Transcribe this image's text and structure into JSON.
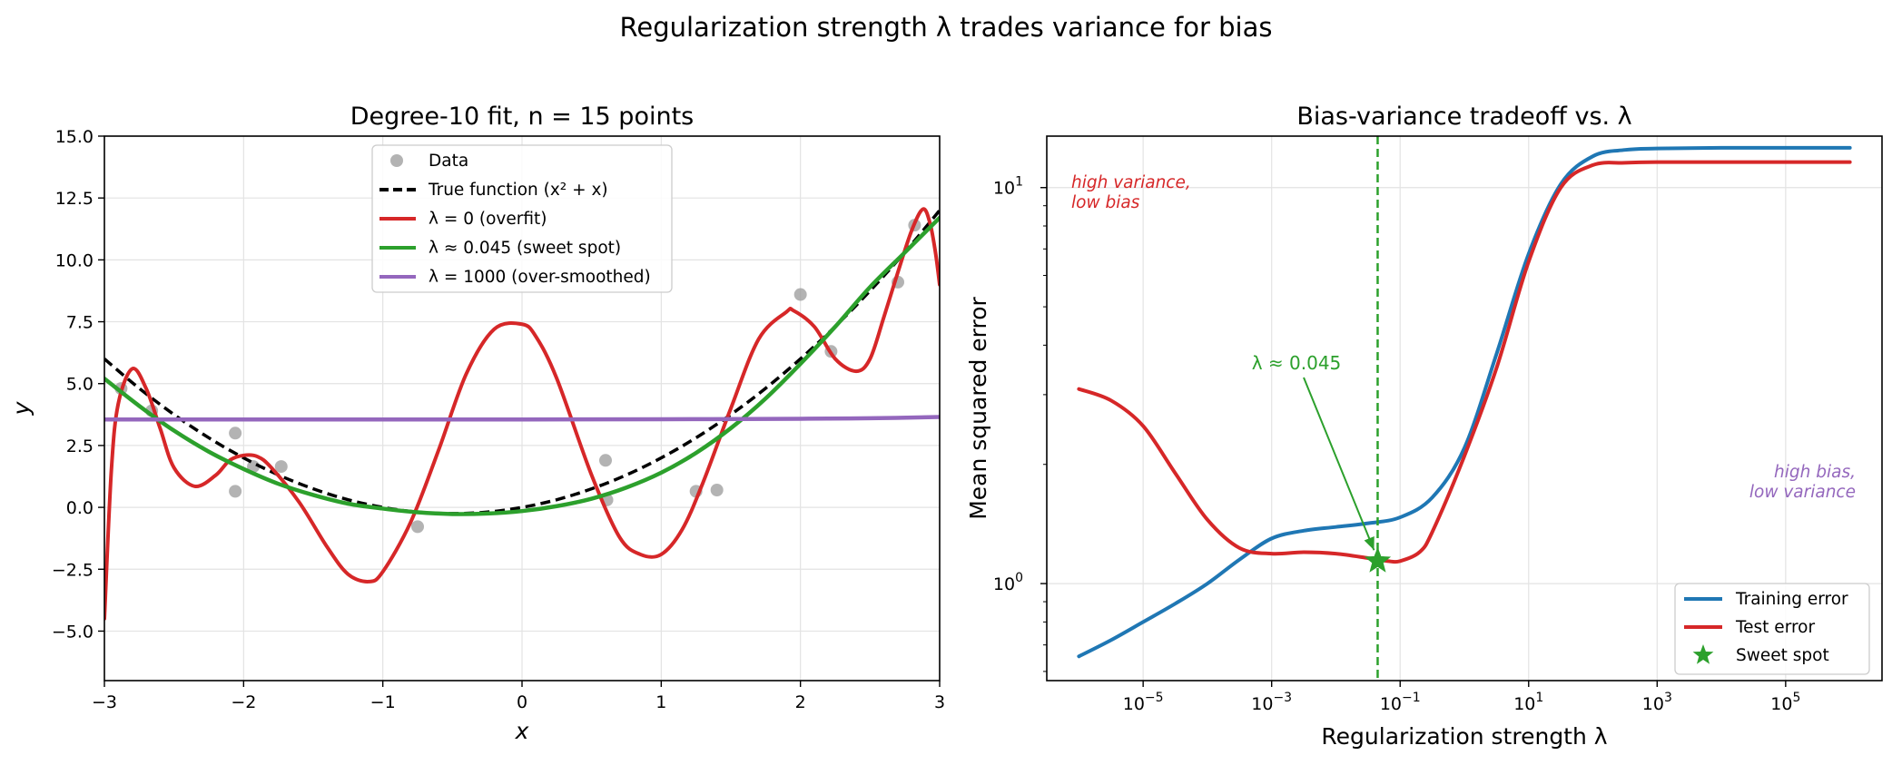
{
  "figure": {
    "title": "Regularization strength λ trades variance for bias"
  },
  "chart_data": [
    {
      "type": "line",
      "title": "Degree-10 fit, n = 15 points",
      "xlabel": "x",
      "ylabel": "y",
      "xlim": [
        -3,
        3
      ],
      "ylim": [
        -7,
        15
      ],
      "xticks": [
        -3,
        -2,
        -1,
        0,
        1,
        2,
        3
      ],
      "yticks": [
        -5,
        -2.5,
        0,
        2.5,
        5,
        7.5,
        10,
        12.5,
        15
      ],
      "xtick_labels": [
        "−3",
        "−2",
        "−1",
        "0",
        "1",
        "2",
        "3"
      ],
      "ytick_labels": [
        "−5.0",
        "−2.5",
        "0.0",
        "2.5",
        "5.0",
        "7.5",
        "10.0",
        "12.5",
        "15.0"
      ],
      "grid": true,
      "legend_position": "upper-center",
      "data_points": {
        "name": "Data",
        "color": "#999999",
        "x": [
          -2.88,
          -2.66,
          -2.06,
          -2.06,
          -1.93,
          -1.73,
          -0.75,
          0.6,
          0.61,
          1.25,
          1.4,
          2.0,
          2.22,
          2.7,
          2.82
        ],
        "y": [
          4.8,
          3.9,
          3.0,
          0.65,
          1.65,
          1.65,
          -0.78,
          1.9,
          0.3,
          0.65,
          0.7,
          8.6,
          6.3,
          9.1,
          11.4
        ]
      },
      "series": [
        {
          "name": "True function ($x^2 + x$)",
          "legend": "True function (x² + x)",
          "color": "#000000",
          "dashed": true,
          "width": 3.5,
          "x": [
            -3,
            -2.75,
            -2.5,
            -2.25,
            -2,
            -1.75,
            -1.5,
            -1.25,
            -1,
            -0.75,
            -0.5,
            -0.25,
            0,
            0.25,
            0.5,
            0.75,
            1,
            1.25,
            1.5,
            1.75,
            2,
            2.25,
            2.5,
            2.75,
            3
          ],
          "y": [
            6,
            4.81,
            3.75,
            2.81,
            2,
            1.31,
            0.75,
            0.31,
            0,
            -0.19,
            -0.25,
            -0.19,
            0,
            0.31,
            0.75,
            1.31,
            2,
            2.81,
            3.75,
            4.81,
            6,
            7.31,
            8.75,
            10.31,
            12
          ]
        },
        {
          "name": "λ = 0 (overfit)",
          "color": "#d62728",
          "width": 4,
          "x": [
            -3,
            -2.95,
            -2.9,
            -2.8,
            -2.7,
            -2.6,
            -2.5,
            -2.35,
            -2.2,
            -2.1,
            -2,
            -1.9,
            -1.8,
            -1.6,
            -1.4,
            -1.25,
            -1.1,
            -1,
            -0.8,
            -0.6,
            -0.4,
            -0.2,
            0,
            0.1,
            0.25,
            0.5,
            0.7,
            0.85,
            1,
            1.15,
            1.3,
            1.5,
            1.7,
            1.9,
            1.95,
            2.1,
            2.25,
            2.4,
            2.5,
            2.6,
            2.7,
            2.8,
            2.88,
            2.93,
            2.97,
            3
          ],
          "y": [
            -4.5,
            1.5,
            4.2,
            5.6,
            4.8,
            3.2,
            1.6,
            0.85,
            1.3,
            1.9,
            2.1,
            2.05,
            1.6,
            0.2,
            -1.6,
            -2.7,
            -3.0,
            -2.6,
            -0.6,
            2.3,
            5.4,
            7.2,
            7.4,
            6.9,
            5.2,
            1.3,
            -1.2,
            -1.9,
            -1.9,
            -0.9,
            1.0,
            4.0,
            6.8,
            7.9,
            7.95,
            7.3,
            6.0,
            5.5,
            6.0,
            7.7,
            9.5,
            11.2,
            12.05,
            11.5,
            10.3,
            9.0
          ]
        },
        {
          "name": "λ ≈ 0.045 (sweet spot)",
          "color": "#2ca02c",
          "width": 4.5,
          "x": [
            -3,
            -2.75,
            -2.5,
            -2.25,
            -2,
            -1.75,
            -1.5,
            -1.25,
            -1,
            -0.75,
            -0.5,
            -0.25,
            0,
            0.25,
            0.5,
            0.75,
            1,
            1.25,
            1.5,
            1.75,
            2,
            2.25,
            2.5,
            2.75,
            3
          ],
          "y": [
            5.2,
            4.1,
            3.1,
            2.25,
            1.55,
            0.95,
            0.5,
            0.15,
            -0.05,
            -0.2,
            -0.27,
            -0.25,
            -0.15,
            0.05,
            0.35,
            0.8,
            1.4,
            2.2,
            3.2,
            4.4,
            5.8,
            7.3,
            8.9,
            10.3,
            11.7
          ]
        },
        {
          "name": "λ = 1000 (over-smoothed)",
          "color": "#9467bd",
          "width": 4.5,
          "x": [
            -3,
            -2,
            -1,
            0,
            1,
            2,
            2.5,
            3
          ],
          "y": [
            3.55,
            3.55,
            3.55,
            3.55,
            3.56,
            3.58,
            3.6,
            3.65
          ]
        }
      ]
    },
    {
      "type": "line",
      "title": "Bias-variance tradeoff vs. λ",
      "xlabel": "Regularization strength λ",
      "ylabel": "Mean squared error",
      "xscale": "log",
      "yscale": "log",
      "xlim": [
        -6.5,
        6.5
      ],
      "ylim": [
        -0.245,
        1.13
      ],
      "xticks": [
        "10^-5",
        "10^-3",
        "10^-1",
        "10^1",
        "10^3",
        "10^5"
      ],
      "yticks": [
        "10^0",
        "10^1"
      ],
      "grid": true,
      "legend_position": "lower-right",
      "series": [
        {
          "name": "Training error",
          "color": "#1f77b4",
          "width": 4,
          "log10_lambda": [
            -6,
            -5.5,
            -5,
            -4.5,
            -4,
            -3.5,
            -3,
            -2.5,
            -2,
            -1.5,
            -1,
            -0.5,
            0,
            0.5,
            1,
            1.5,
            2,
            2.5,
            3,
            4,
            5,
            6
          ],
          "mse": [
            0.655,
            0.72,
            0.8,
            0.89,
            1.0,
            1.15,
            1.3,
            1.36,
            1.39,
            1.42,
            1.47,
            1.65,
            2.2,
            3.8,
            6.8,
            10.2,
            12.0,
            12.45,
            12.55,
            12.6,
            12.6,
            12.6
          ]
        },
        {
          "name": "Test error",
          "color": "#d62728",
          "width": 4,
          "log10_lambda": [
            -6,
            -5.5,
            -5,
            -4.5,
            -4,
            -3.5,
            -3,
            -2.5,
            -2,
            -1.5,
            -1.2,
            -1,
            -0.7,
            -0.5,
            0,
            0.5,
            1,
            1.5,
            2,
            2.5,
            3,
            4,
            5,
            6
          ],
          "mse": [
            3.1,
            2.9,
            2.5,
            1.9,
            1.45,
            1.23,
            1.19,
            1.2,
            1.19,
            1.16,
            1.14,
            1.14,
            1.2,
            1.35,
            2.1,
            3.5,
            6.5,
            10.0,
            11.4,
            11.55,
            11.6,
            11.6,
            11.6,
            11.6
          ]
        }
      ],
      "sweet_spot": {
        "name": "Sweet spot",
        "color": "#2ca02c",
        "log10_lambda": -1.35,
        "mse": 1.14
      },
      "annotations": {
        "arrow_label": "λ ≈ 0.045",
        "left_line1": "high variance,",
        "left_line2": "low bias",
        "right_line1": "high bias,",
        "right_line2": "low variance",
        "left_color": "#d62728",
        "right_color": "#9467bd"
      }
    }
  ]
}
